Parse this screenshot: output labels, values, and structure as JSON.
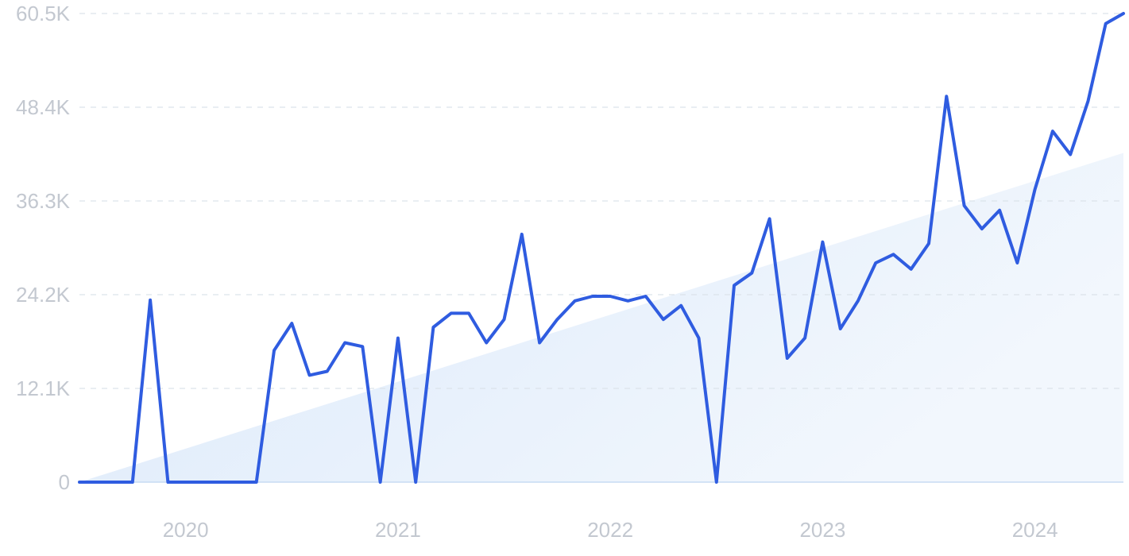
{
  "chart_data": {
    "type": "line",
    "title": "",
    "xlabel": "",
    "ylabel": "",
    "colors": {
      "line": "#2f5ce0",
      "trend_fill": "#e3eefb",
      "grid": "#dce3ea",
      "axis": "#c7dcf3",
      "tick_text": "#c3c8d0"
    },
    "grid": true,
    "ylim": [
      0,
      60500
    ],
    "y_ticks": [
      "0",
      "12.1K",
      "24.2K",
      "36.3K",
      "48.4K",
      "60.5K"
    ],
    "y_tick_values": [
      0,
      12100,
      24200,
      36300,
      48400,
      60500
    ],
    "x_ticks": [
      "2020",
      "2021",
      "2022",
      "2023",
      "2024"
    ],
    "x_tick_positions": [
      6,
      18,
      30,
      42,
      54
    ],
    "x_range": [
      0,
      59
    ],
    "trend": {
      "start": 0,
      "end": 42500
    },
    "series": [
      {
        "values": [
          0,
          0,
          0,
          0,
          23500,
          0,
          0,
          0,
          0,
          0,
          0,
          17000,
          20500,
          13800,
          14300,
          18000,
          17500,
          0,
          18600,
          0,
          20000,
          21800,
          21800,
          18000,
          21000,
          32000,
          18000,
          21000,
          23400,
          24000,
          24000,
          23400,
          24000,
          21000,
          22800,
          18600,
          0,
          25400,
          27000,
          34000,
          16000,
          18600,
          31000,
          19800,
          23400,
          28300,
          29400,
          27500,
          30800,
          49800,
          35700,
          32700,
          35100,
          28300,
          37800,
          45300,
          42300,
          49200,
          59200,
          60500
        ]
      }
    ]
  }
}
